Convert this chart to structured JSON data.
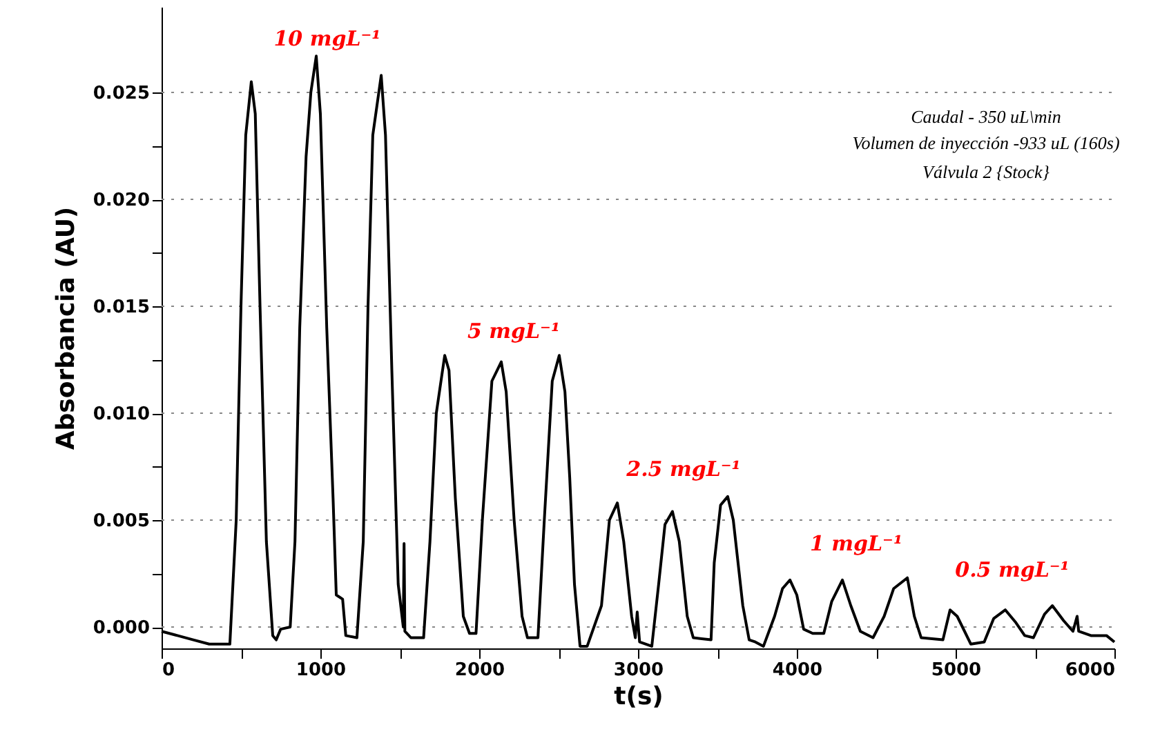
{
  "chart_data": {
    "type": "line",
    "xlabel": "t(s)",
    "ylabel": "Absorbancia (AU)",
    "xlim": [
      0,
      6000
    ],
    "ylim": [
      -0.001,
      0.029
    ],
    "xticks": [
      0,
      {
        "value": 500,
        "label": null
      },
      1000,
      {
        "value": 1500,
        "label": null
      },
      2000,
      {
        "value": 2500,
        "label": null
      },
      3000,
      {
        "value": 3500,
        "label": null
      },
      4000,
      {
        "value": 4500,
        "label": null
      },
      5000,
      {
        "value": 5500,
        "label": null
      },
      6000
    ],
    "yticks": [
      {
        "value": 0,
        "label": "0.000"
      },
      {
        "value": 0.0025,
        "label": null
      },
      {
        "value": 0.005,
        "label": "0.005"
      },
      {
        "value": 0.0075,
        "label": null
      },
      {
        "value": 0.01,
        "label": "0.010"
      },
      {
        "value": 0.0125,
        "label": null
      },
      {
        "value": 0.015,
        "label": "0.015"
      },
      {
        "value": 0.0175,
        "label": null
      },
      {
        "value": 0.02,
        "label": "0.020"
      },
      {
        "value": 0.0225,
        "label": null
      },
      {
        "value": 0.025,
        "label": "0.025"
      }
    ],
    "grid": "y",
    "marker": "none",
    "line_style": "solid",
    "annotations": [
      "10 mgL⁻¹",
      "5 mgL⁻¹",
      "2.5 mgL⁻¹",
      "1 mgL⁻¹",
      "0.5 mgL⁻¹",
      "Caudal - 350 uL\\min",
      "Volumen de inyección -933 uL (160s)",
      "Válvula 2 {Stock}"
    ],
    "series": [
      {
        "color": "#000000",
        "x": [
          0,
          100,
          200,
          300,
          430,
          470,
          500,
          530,
          565,
          590,
          620,
          660,
          700,
          722,
          750,
          810,
          840,
          870,
          910,
          940,
          974,
          1000,
          1040,
          1080,
          1100,
          1140,
          1160,
          1230,
          1270,
          1300,
          1330,
          1383,
          1410,
          1450,
          1490,
          1522,
          1527,
          1532,
          1570,
          1650,
          1690,
          1730,
          1783,
          1810,
          1850,
          1900,
          1939,
          1980,
          2020,
          2080,
          2139,
          2170,
          2220,
          2270,
          2304,
          2370,
          2410,
          2460,
          2504,
          2540,
          2570,
          2600,
          2635,
          2680,
          2770,
          2820,
          2870,
          2910,
          2960,
          2983,
          2995,
          3010,
          3087,
          3130,
          3170,
          3217,
          3260,
          3310,
          3348,
          3460,
          3480,
          3520,
          3565,
          3600,
          3660,
          3700,
          3739,
          3790,
          3860,
          3910,
          3957,
          4000,
          4043,
          4100,
          4170,
          4220,
          4287,
          4340,
          4400,
          4480,
          4550,
          4610,
          4696,
          4740,
          4783,
          4920,
          4965,
          5010,
          5096,
          5180,
          5240,
          5313,
          5380,
          5435,
          5490,
          5560,
          5609,
          5680,
          5739,
          5765,
          5775,
          5852,
          5950,
          6000
        ],
        "values": [
          -0.0002,
          -0.0004,
          -0.0006,
          -0.0008,
          -0.0008,
          0.005,
          0.015,
          0.023,
          0.0255,
          0.024,
          0.015,
          0.004,
          -0.0004,
          -0.0006,
          -0.0001,
          0.0,
          0.004,
          0.014,
          0.022,
          0.025,
          0.0267,
          0.024,
          0.014,
          0.006,
          0.0015,
          0.0013,
          -0.0004,
          -0.0005,
          0.004,
          0.015,
          0.023,
          0.0258,
          0.023,
          0.012,
          0.002,
          0.0,
          0.0039,
          -0.0002,
          -0.0005,
          -0.0005,
          0.004,
          0.01,
          0.0127,
          0.012,
          0.006,
          0.0005,
          -0.0003,
          -0.0003,
          0.005,
          0.0115,
          0.0124,
          0.011,
          0.005,
          0.0005,
          -0.0005,
          -0.0005,
          0.005,
          0.0115,
          0.0127,
          0.011,
          0.007,
          0.002,
          -0.0009,
          -0.0009,
          0.001,
          0.005,
          0.0058,
          0.004,
          0.0005,
          -0.0005,
          0.0007,
          -0.0007,
          -0.0009,
          0.002,
          0.0048,
          0.0054,
          0.004,
          0.0005,
          -0.0005,
          -0.0006,
          0.003,
          0.0057,
          0.0061,
          0.005,
          0.001,
          -0.0006,
          -0.0007,
          -0.0009,
          0.0005,
          0.0018,
          0.0022,
          0.0015,
          -0.0001,
          -0.0003,
          -0.0003,
          0.0012,
          0.0022,
          0.001,
          -0.0002,
          -0.0005,
          0.0005,
          0.0018,
          0.0023,
          0.0005,
          -0.0005,
          -0.0006,
          0.0008,
          0.0005,
          -0.0008,
          -0.0007,
          0.0004,
          0.0008,
          0.0002,
          -0.0004,
          -0.0005,
          0.0006,
          0.001,
          0.0003,
          -0.0002,
          0.0005,
          -0.0002,
          -0.0004,
          -0.0004,
          -0.0007
        ]
      }
    ]
  }
}
